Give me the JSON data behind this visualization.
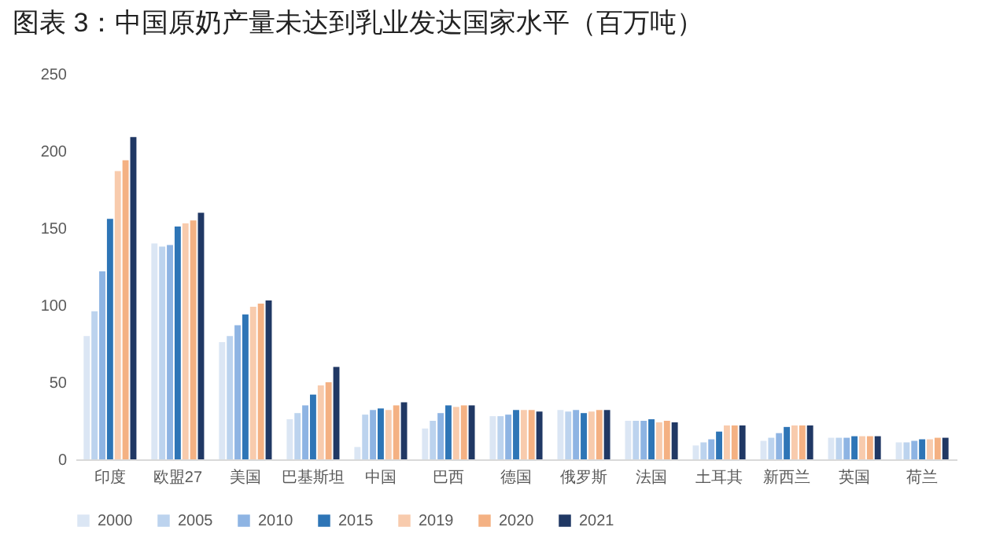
{
  "chart_data": {
    "type": "bar",
    "title": "图表 3：中国原奶产量未达到乳业发达国家水平（百万吨）",
    "categories": [
      "印度",
      "欧盟27",
      "美国",
      "巴基斯坦",
      "中国",
      "巴西",
      "德国",
      "俄罗斯",
      "法国",
      "土耳其",
      "新西兰",
      "英国",
      "荷兰"
    ],
    "series": [
      {
        "name": "2000",
        "color": "#dbe6f4",
        "values": [
          80,
          140,
          76,
          26,
          8,
          20,
          28,
          32,
          25,
          9,
          12,
          14,
          11
        ]
      },
      {
        "name": "2005",
        "color": "#bcd3ee",
        "values": [
          96,
          138,
          80,
          30,
          29,
          25,
          28,
          31,
          25,
          11,
          14,
          14,
          11
        ]
      },
      {
        "name": "2010",
        "color": "#8eb4e3",
        "values": [
          122,
          139,
          87,
          35,
          32,
          30,
          29,
          32,
          25,
          13,
          17,
          14,
          12
        ]
      },
      {
        "name": "2015",
        "color": "#2e75b6",
        "values": [
          156,
          151,
          94,
          42,
          33,
          35,
          32,
          30,
          26,
          18,
          21,
          15,
          13
        ]
      },
      {
        "name": "2019",
        "color": "#f8cbad",
        "values": [
          187,
          153,
          99,
          48,
          32,
          34,
          32,
          31,
          24,
          22,
          22,
          15,
          13
        ]
      },
      {
        "name": "2020",
        "color": "#f4b183",
        "values": [
          194,
          155,
          101,
          50,
          35,
          35,
          32,
          32,
          25,
          22,
          22,
          15,
          14
        ]
      },
      {
        "name": "2021",
        "color": "#203864",
        "values": [
          209,
          160,
          103,
          60,
          37,
          35,
          31,
          32,
          24,
          22,
          22,
          15,
          14
        ]
      }
    ],
    "ylim": [
      0,
      250
    ],
    "yticks": [
      0,
      50,
      100,
      150,
      200,
      250
    ],
    "grid": false,
    "legend": "bottom"
  }
}
